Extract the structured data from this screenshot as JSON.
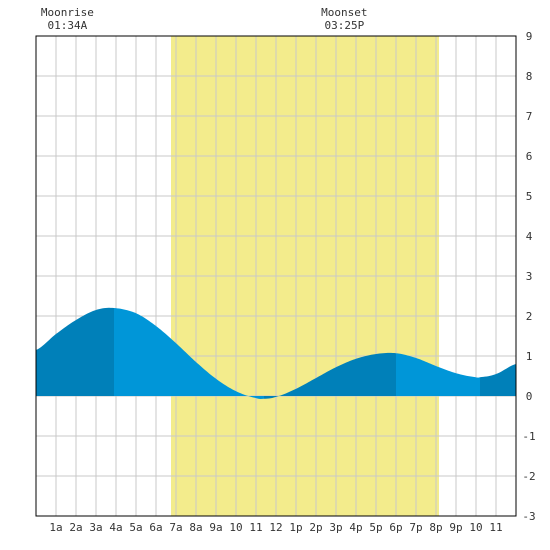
{
  "moon": {
    "moonrise": {
      "label": "Moonrise",
      "time": "01:34A",
      "hour": 1.567
    },
    "moonset": {
      "label": "Moonset",
      "time": "03:25P",
      "hour": 15.417
    }
  },
  "chart_data": {
    "type": "area",
    "title": "",
    "xlabel": "",
    "ylabel": "",
    "xlim": [
      0,
      24
    ],
    "ylim": [
      -3,
      9
    ],
    "grid": true,
    "daylight": {
      "start_hour": 6.75,
      "end_hour": 20.15,
      "color": "#f3ec8c"
    },
    "x_tick_labels": [
      {
        "hour": 1,
        "label": "1a"
      },
      {
        "hour": 2,
        "label": "2a"
      },
      {
        "hour": 3,
        "label": "3a"
      },
      {
        "hour": 4,
        "label": "4a"
      },
      {
        "hour": 5,
        "label": "5a"
      },
      {
        "hour": 6,
        "label": "6a"
      },
      {
        "hour": 7,
        "label": "7a"
      },
      {
        "hour": 8,
        "label": "8a"
      },
      {
        "hour": 9,
        "label": "9a"
      },
      {
        "hour": 10,
        "label": "10"
      },
      {
        "hour": 11,
        "label": "11"
      },
      {
        "hour": 12,
        "label": "12"
      },
      {
        "hour": 13,
        "label": "1p"
      },
      {
        "hour": 14,
        "label": "2p"
      },
      {
        "hour": 15,
        "label": "3p"
      },
      {
        "hour": 16,
        "label": "4p"
      },
      {
        "hour": 17,
        "label": "5p"
      },
      {
        "hour": 18,
        "label": "6p"
      },
      {
        "hour": 19,
        "label": "7p"
      },
      {
        "hour": 20,
        "label": "8p"
      },
      {
        "hour": 21,
        "label": "9p"
      },
      {
        "hour": 22,
        "label": "10"
      },
      {
        "hour": 23,
        "label": "11"
      }
    ],
    "y_tick_labels": [
      "-3",
      "-2",
      "-1",
      "0",
      "1",
      "2",
      "3",
      "4",
      "5",
      "6",
      "7",
      "8",
      "9"
    ],
    "extremes": [
      {
        "type": "high",
        "hour": 3.9,
        "height": 2.2
      },
      {
        "type": "low",
        "hour": 11.4,
        "height": -0.07
      },
      {
        "type": "high",
        "hour": 18.0,
        "height": 1.07
      },
      {
        "type": "low",
        "hour": 22.2,
        "height": 0.47
      }
    ],
    "series": [
      {
        "x": [
          0,
          1,
          2,
          3,
          3.9,
          5,
          6,
          7,
          8,
          9,
          10,
          11,
          11.4,
          12,
          13,
          14,
          15,
          16,
          17,
          18,
          19,
          20,
          21,
          22,
          22.2,
          23,
          24
        ],
        "y": [
          1.15,
          1.55,
          1.9,
          2.15,
          2.2,
          2.07,
          1.75,
          1.32,
          0.85,
          0.43,
          0.12,
          -0.05,
          -0.07,
          -0.02,
          0.18,
          0.45,
          0.72,
          0.93,
          1.05,
          1.07,
          0.95,
          0.75,
          0.57,
          0.47,
          0.47,
          0.55,
          0.8
        ]
      }
    ],
    "colors": {
      "tide_dark": "#0080b9",
      "tide_light": "#0096d8",
      "grid": "#c8c8c8",
      "frame": "#000000"
    }
  }
}
